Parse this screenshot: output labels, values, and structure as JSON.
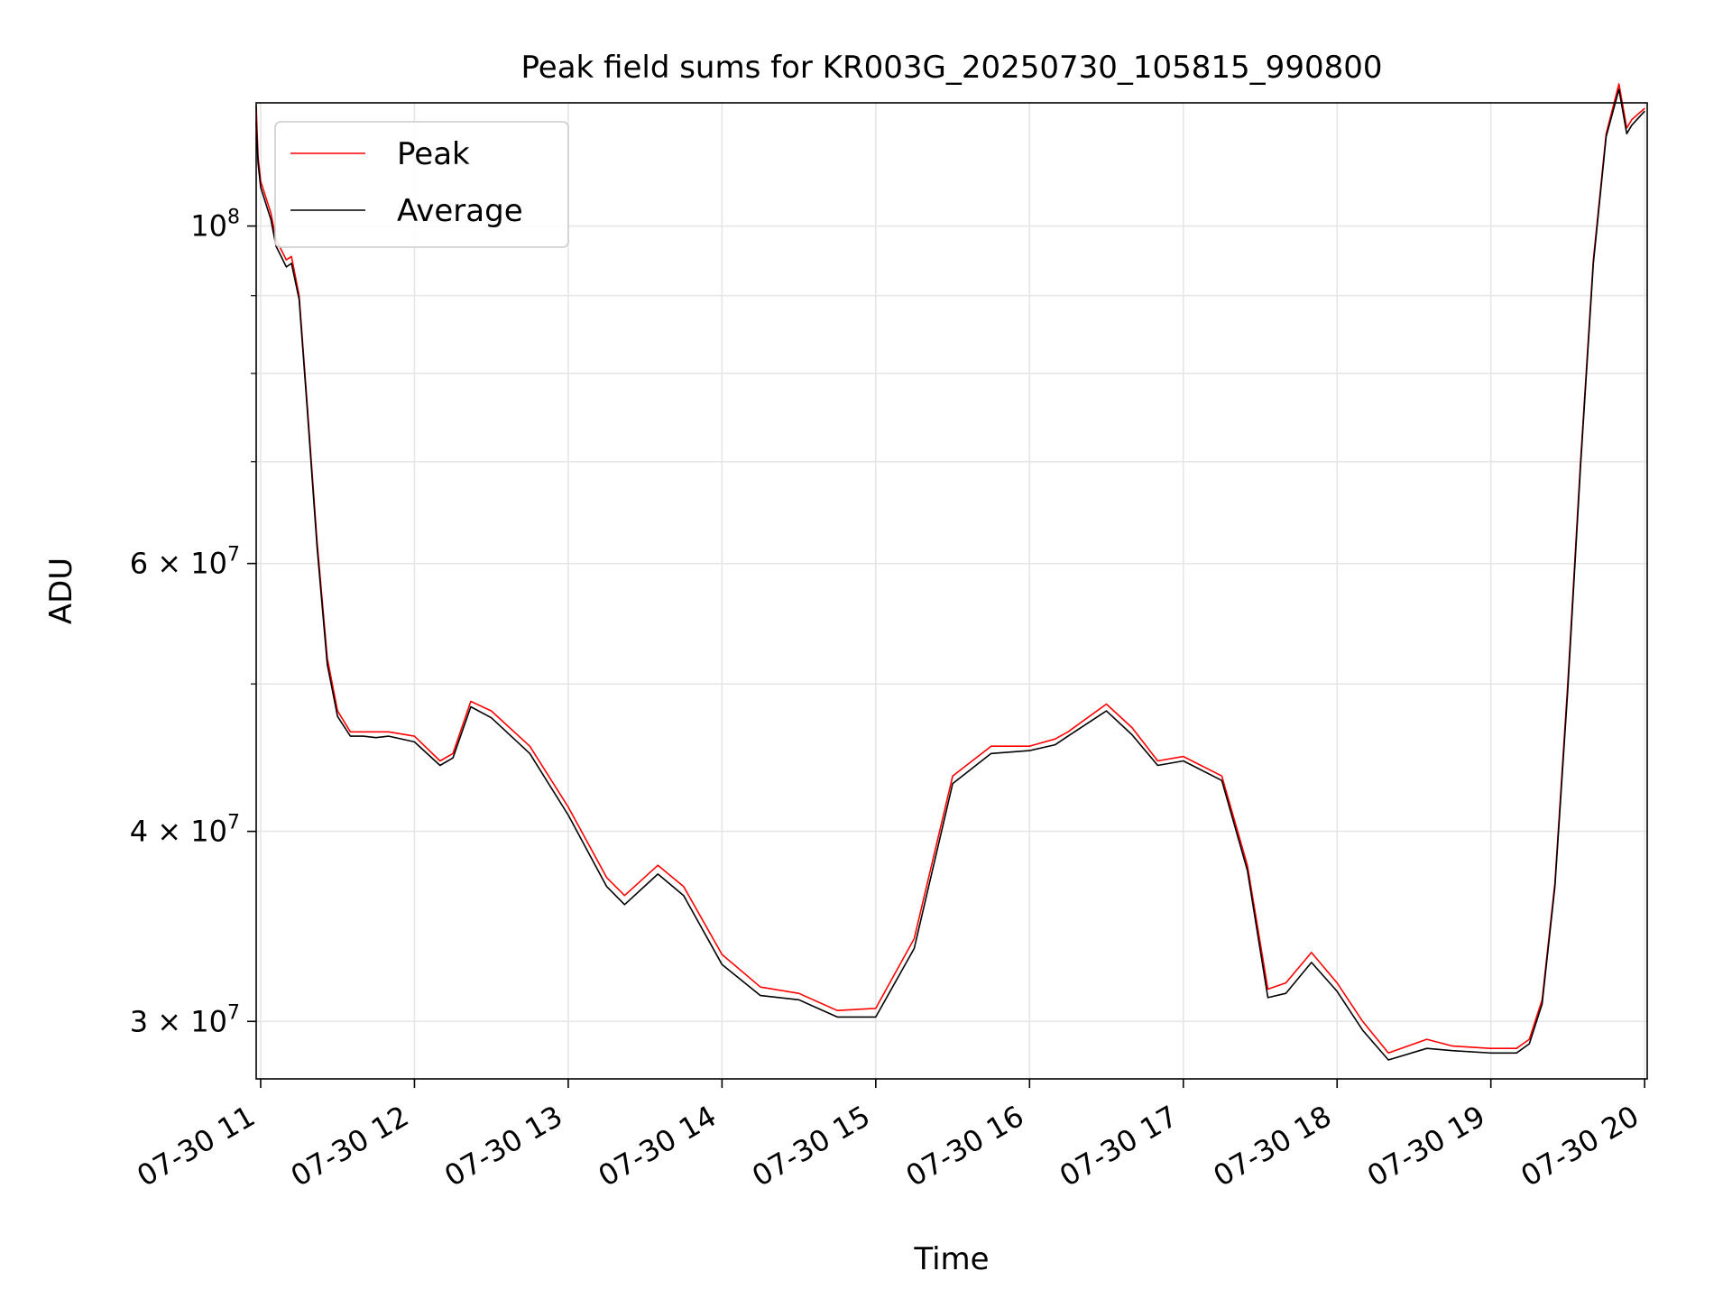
{
  "chart_data": {
    "type": "line",
    "title": "Peak field sums for KR003G_20250730_105815_990800",
    "xlabel": "Time",
    "ylabel": "ADU",
    "x_scale": "time",
    "y_scale": "log",
    "xlim": [
      "2025-07-30T10:58:15",
      "2025-07-30T20:01:00"
    ],
    "ylim": [
      27500000,
      120500000
    ],
    "grid": true,
    "legend_position": "top-left",
    "x_ticks": [
      {
        "value": "2025-07-30T11:00",
        "label": "07-30 11"
      },
      {
        "value": "2025-07-30T12:00",
        "label": "07-30 12"
      },
      {
        "value": "2025-07-30T13:00",
        "label": "07-30 13"
      },
      {
        "value": "2025-07-30T14:00",
        "label": "07-30 14"
      },
      {
        "value": "2025-07-30T15:00",
        "label": "07-30 15"
      },
      {
        "value": "2025-07-30T16:00",
        "label": "07-30 16"
      },
      {
        "value": "2025-07-30T17:00",
        "label": "07-30 17"
      },
      {
        "value": "2025-07-30T18:00",
        "label": "07-30 18"
      },
      {
        "value": "2025-07-30T19:00",
        "label": "07-30 19"
      },
      {
        "value": "2025-07-30T20:00",
        "label": "07-30 20"
      }
    ],
    "y_major_ticks": [
      {
        "value": 30000000,
        "base": "3 × 10",
        "exp": "7"
      },
      {
        "value": 40000000,
        "base": "4 × 10",
        "exp": "7"
      },
      {
        "value": 60000000,
        "base": "6 × 10",
        "exp": "7"
      },
      {
        "value": 100000000,
        "base": "10",
        "exp": "8"
      }
    ],
    "y_minor_grid": [
      50000000,
      70000000,
      80000000,
      90000000
    ],
    "series": [
      {
        "name": "Peak",
        "color": "#ff0000",
        "x": [
          "2025-07-30T10:58:15",
          "2025-07-30T10:59:00",
          "2025-07-30T11:00:00",
          "2025-07-30T11:04:00",
          "2025-07-30T11:06:00",
          "2025-07-30T11:10:00",
          "2025-07-30T11:12:00",
          "2025-07-30T11:15:00",
          "2025-07-30T11:18:00",
          "2025-07-30T11:22:00",
          "2025-07-30T11:26:00",
          "2025-07-30T11:30:00",
          "2025-07-30T11:35:00",
          "2025-07-30T11:40:00",
          "2025-07-30T11:45:00",
          "2025-07-30T11:50:00",
          "2025-07-30T12:00:00",
          "2025-07-30T12:10:00",
          "2025-07-30T12:15:00",
          "2025-07-30T12:22:00",
          "2025-07-30T12:30:00",
          "2025-07-30T12:45:00",
          "2025-07-30T13:00:00",
          "2025-07-30T13:15:00",
          "2025-07-30T13:22:00",
          "2025-07-30T13:35:00",
          "2025-07-30T13:45:00",
          "2025-07-30T14:00:00",
          "2025-07-30T14:15:00",
          "2025-07-30T14:30:00",
          "2025-07-30T14:45:00",
          "2025-07-30T15:00:00",
          "2025-07-30T15:15:00",
          "2025-07-30T15:30:00",
          "2025-07-30T15:45:00",
          "2025-07-30T16:00:00",
          "2025-07-30T16:10:00",
          "2025-07-30T16:15:00",
          "2025-07-30T16:30:00",
          "2025-07-30T16:40:00",
          "2025-07-30T16:50:00",
          "2025-07-30T17:00:00",
          "2025-07-30T17:15:00",
          "2025-07-30T17:25:00",
          "2025-07-30T17:33:00",
          "2025-07-30T17:40:00",
          "2025-07-30T17:50:00",
          "2025-07-30T18:00:00",
          "2025-07-30T18:10:00",
          "2025-07-30T18:20:00",
          "2025-07-30T18:35:00",
          "2025-07-30T18:45:00",
          "2025-07-30T19:00:00",
          "2025-07-30T19:10:00",
          "2025-07-30T19:15:00",
          "2025-07-30T19:20:00",
          "2025-07-30T19:25:00",
          "2025-07-30T19:30:00",
          "2025-07-30T19:35:00",
          "2025-07-30T19:40:00",
          "2025-07-30T19:45:00",
          "2025-07-30T19:50:00",
          "2025-07-30T19:53:00",
          "2025-07-30T19:55:00",
          "2025-07-30T20:00:00"
        ],
        "y": [
          120000000,
          111000000,
          107000000,
          102000000,
          98000000,
          95000000,
          95500000,
          90000000,
          77000000,
          62000000,
          52000000,
          48000000,
          46500000,
          46500000,
          46500000,
          46500000,
          46200000,
          44500000,
          45000000,
          48700000,
          48000000,
          45500000,
          41500000,
          37300000,
          36300000,
          38000000,
          36800000,
          33200000,
          31600000,
          31300000,
          30500000,
          30600000,
          34000000,
          43500000,
          45500000,
          45500000,
          46000000,
          46500000,
          48500000,
          46800000,
          44500000,
          44800000,
          43500000,
          38000000,
          31500000,
          31800000,
          33300000,
          31800000,
          30000000,
          28600000,
          29200000,
          28900000,
          28800000,
          28800000,
          29200000,
          31000000,
          37000000,
          50000000,
          70000000,
          95000000,
          115000000,
          124000000,
          116000000,
          117500000,
          119500000
        ]
      },
      {
        "name": "Average",
        "color": "#000000",
        "x": [
          "2025-07-30T10:58:15",
          "2025-07-30T10:59:00",
          "2025-07-30T11:00:00",
          "2025-07-30T11:04:00",
          "2025-07-30T11:06:00",
          "2025-07-30T11:10:00",
          "2025-07-30T11:12:00",
          "2025-07-30T11:15:00",
          "2025-07-30T11:18:00",
          "2025-07-30T11:22:00",
          "2025-07-30T11:26:00",
          "2025-07-30T11:30:00",
          "2025-07-30T11:35:00",
          "2025-07-30T11:40:00",
          "2025-07-30T11:45:00",
          "2025-07-30T11:50:00",
          "2025-07-30T12:00:00",
          "2025-07-30T12:10:00",
          "2025-07-30T12:15:00",
          "2025-07-30T12:22:00",
          "2025-07-30T12:30:00",
          "2025-07-30T12:45:00",
          "2025-07-30T13:00:00",
          "2025-07-30T13:15:00",
          "2025-07-30T13:22:00",
          "2025-07-30T13:35:00",
          "2025-07-30T13:45:00",
          "2025-07-30T14:00:00",
          "2025-07-30T14:15:00",
          "2025-07-30T14:30:00",
          "2025-07-30T14:45:00",
          "2025-07-30T15:00:00",
          "2025-07-30T15:15:00",
          "2025-07-30T15:30:00",
          "2025-07-30T15:45:00",
          "2025-07-30T16:00:00",
          "2025-07-30T16:10:00",
          "2025-07-30T16:15:00",
          "2025-07-30T16:30:00",
          "2025-07-30T16:40:00",
          "2025-07-30T16:50:00",
          "2025-07-30T17:00:00",
          "2025-07-30T17:15:00",
          "2025-07-30T17:25:00",
          "2025-07-30T17:33:00",
          "2025-07-30T17:40:00",
          "2025-07-30T17:50:00",
          "2025-07-30T18:00:00",
          "2025-07-30T18:10:00",
          "2025-07-30T18:20:00",
          "2025-07-30T18:35:00",
          "2025-07-30T18:45:00",
          "2025-07-30T19:00:00",
          "2025-07-30T19:10:00",
          "2025-07-30T19:15:00",
          "2025-07-30T19:20:00",
          "2025-07-30T19:25:00",
          "2025-07-30T19:30:00",
          "2025-07-30T19:35:00",
          "2025-07-30T19:40:00",
          "2025-07-30T19:45:00",
          "2025-07-30T19:50:00",
          "2025-07-30T19:53:00",
          "2025-07-30T19:55:00",
          "2025-07-30T20:00:00"
        ],
        "y": [
          117000000,
          110000000,
          106000000,
          101000000,
          97000000,
          94000000,
          94500000,
          89500000,
          76500000,
          61500000,
          51500000,
          47600000,
          46200000,
          46200000,
          46100000,
          46200000,
          45800000,
          44200000,
          44700000,
          48300000,
          47500000,
          45000000,
          41000000,
          36800000,
          35800000,
          37500000,
          36300000,
          32700000,
          31200000,
          31000000,
          30200000,
          30200000,
          33500000,
          43000000,
          45000000,
          45200000,
          45600000,
          46200000,
          48000000,
          46300000,
          44200000,
          44500000,
          43200000,
          37700000,
          31100000,
          31300000,
          32800000,
          31400000,
          29600000,
          28300000,
          28800000,
          28700000,
          28600000,
          28600000,
          29000000,
          30800000,
          36800000,
          49500000,
          69500000,
          94500000,
          114500000,
          123000000,
          115000000,
          116500000,
          119000000
        ]
      }
    ],
    "legend": [
      "Peak",
      "Average"
    ]
  }
}
